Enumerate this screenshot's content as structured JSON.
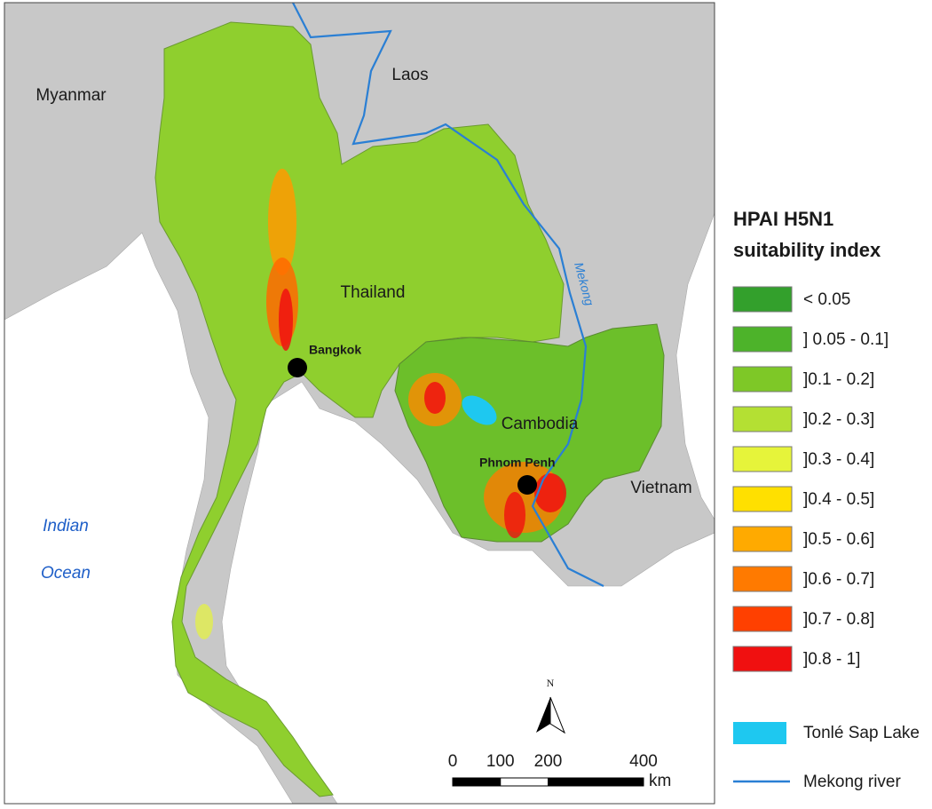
{
  "map": {
    "places": [
      "Myanmar",
      "Laos",
      "Thailand",
      "Cambodia",
      "Vietnam"
    ],
    "cities": [
      "Bangkok",
      "Phnom Penh"
    ],
    "ocean": [
      "Indian",
      "Ocean"
    ],
    "river_label": "Mekong",
    "legend": {
      "title": [
        "HPAI H5N1",
        "suitability index"
      ],
      "classes": [
        {
          "label": "< 0.05",
          "color": "#33a02c"
        },
        {
          "label": "] 0.05 - 0.1]",
          "color": "#4db32a"
        },
        {
          "label": "]0.1 - 0.2]",
          "color": "#7ec827"
        },
        {
          "label": "]0.2 - 0.3]",
          "color": "#b4e033"
        },
        {
          "label": "]0.3 - 0.4]",
          "color": "#e6f43a"
        },
        {
          "label": "]0.4 - 0.5]",
          "color": "#ffe000"
        },
        {
          "label": "]0.5 - 0.6]",
          "color": "#ffaa00"
        },
        {
          "label": "]0.6 - 0.7]",
          "color": "#ff7a00"
        },
        {
          "label": "]0.7 - 0.8]",
          "color": "#ff4000"
        },
        {
          "label": "]0.8 - 1]",
          "color": "#f01010"
        }
      ],
      "lake": {
        "label": "Tonlé Sap Lake",
        "color": "#1ec8f0"
      },
      "river": {
        "label": "Mekong river",
        "color": "#2a7fd4"
      }
    },
    "north": "N",
    "scale_bar": {
      "ticks": [
        0,
        100,
        200,
        400
      ],
      "unit": "km"
    }
  }
}
